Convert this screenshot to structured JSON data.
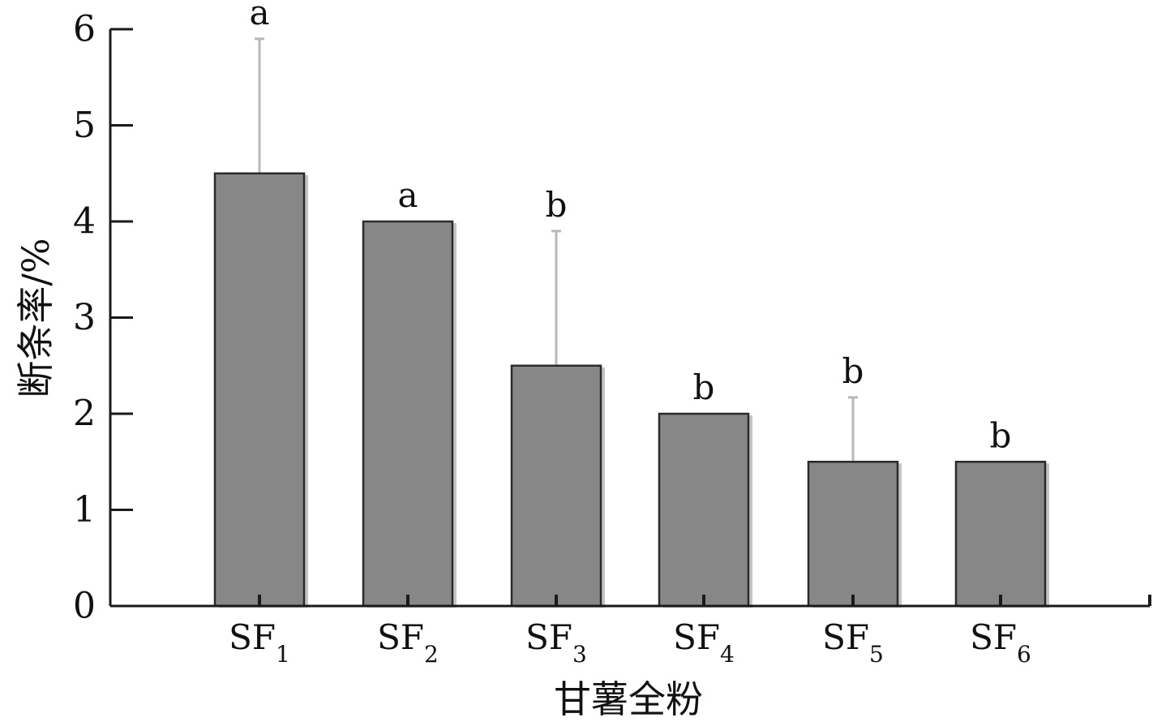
{
  "chart_data": {
    "type": "bar",
    "categories": [
      {
        "base": "SF",
        "sub": "1"
      },
      {
        "base": "SF",
        "sub": "2"
      },
      {
        "base": "SF",
        "sub": "3"
      },
      {
        "base": "SF",
        "sub": "4"
      },
      {
        "base": "SF",
        "sub": "5"
      },
      {
        "base": "SF",
        "sub": "6"
      }
    ],
    "values": [
      4.5,
      4.0,
      2.5,
      2.0,
      1.5,
      1.5
    ],
    "error": [
      1.4,
      0,
      1.4,
      0,
      0.67,
      0
    ],
    "significance": [
      "a",
      "a",
      "b",
      "b",
      "b",
      "b"
    ],
    "xlabel": "甘薯全粉",
    "ylabel": "断条率/%",
    "ylim": [
      0,
      6
    ],
    "yticks": [
      0,
      1,
      2,
      3,
      4,
      5,
      6
    ],
    "grid": false,
    "colors": {
      "bar_fill": "#878787",
      "bar_edge": "#2a2a2a",
      "bar_shadow": "#c4c4c4",
      "error_bar": "#b8b8b8",
      "axis": "#1a1a1a"
    }
  }
}
